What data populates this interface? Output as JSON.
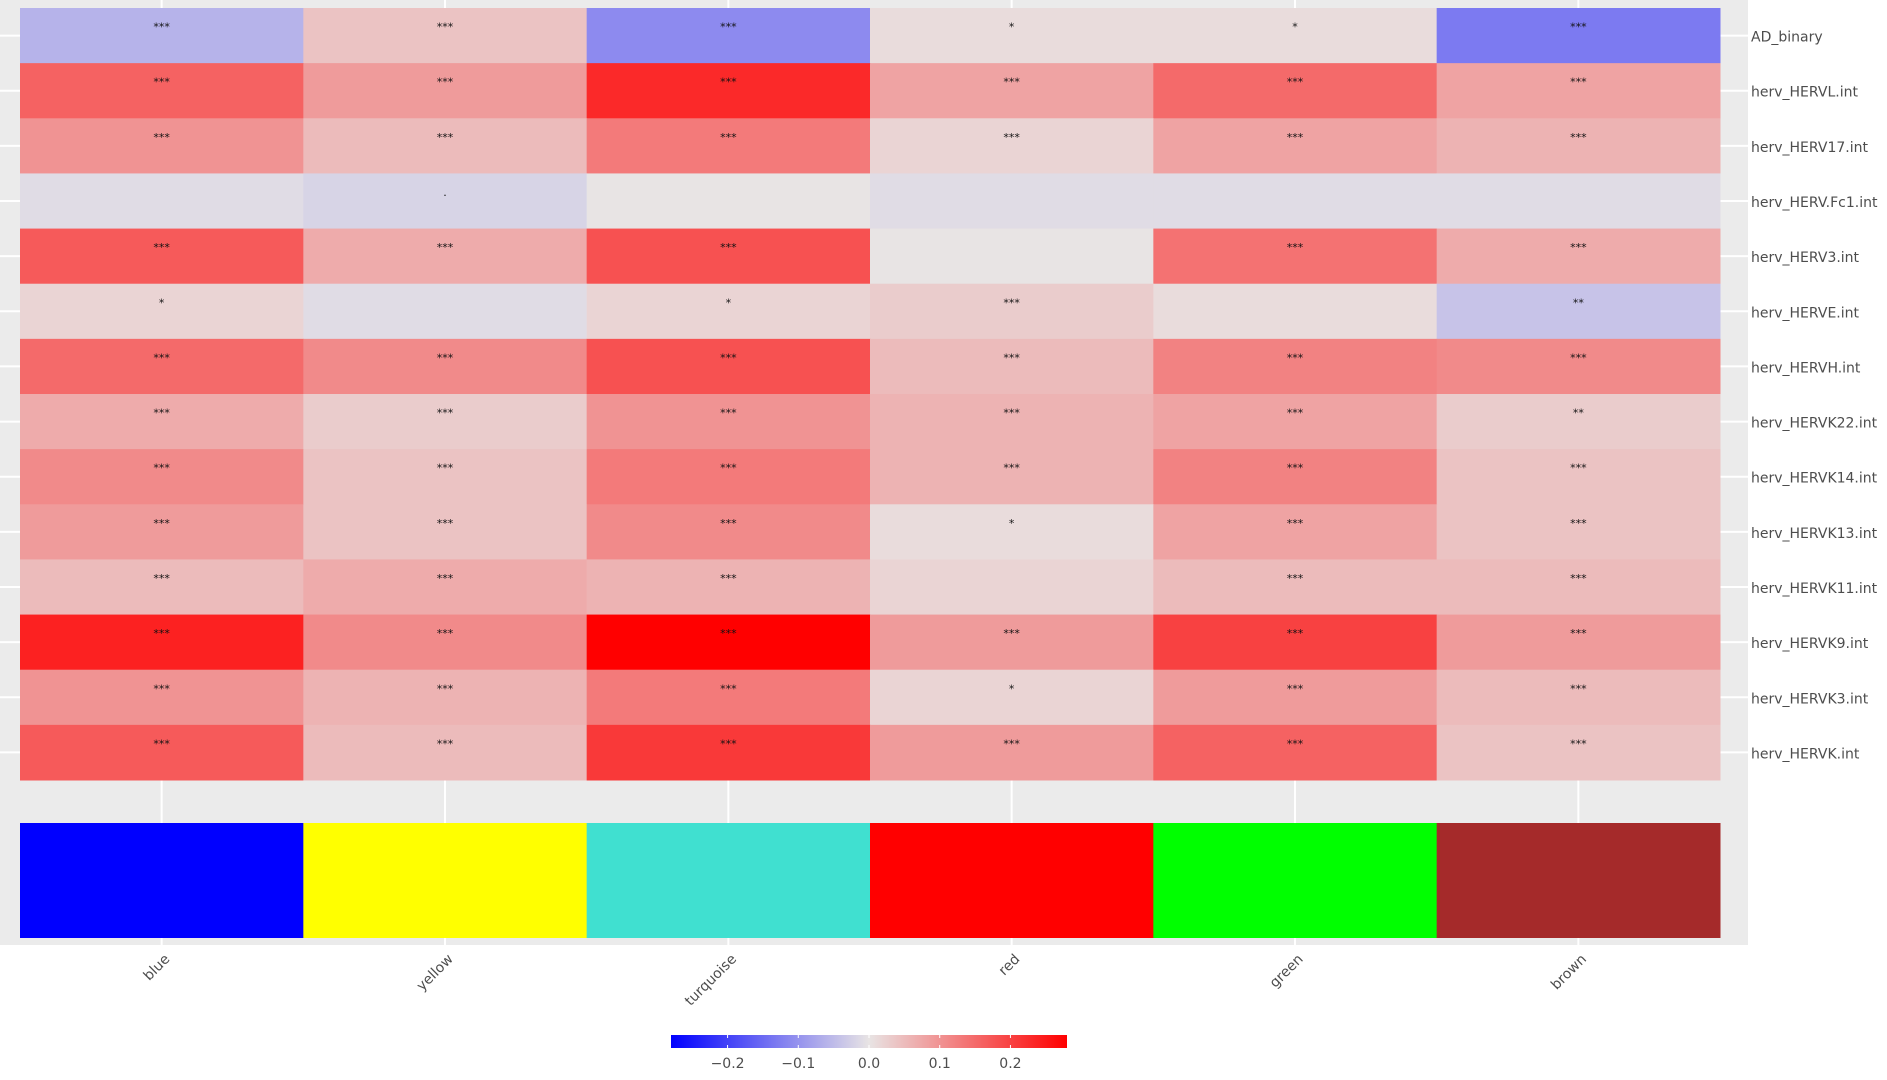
{
  "chart_data": {
    "type": "heatmap",
    "x_categories": [
      "blue",
      "yellow",
      "turquoise",
      "red",
      "green",
      "brown"
    ],
    "y_categories": [
      "AD_binary",
      "herv_HERVL.int",
      "herv_HERV17.int",
      "herv_HERV.Fc1.int",
      "herv_HERV3.int",
      "herv_HERVE.int",
      "herv_HERVH.int",
      "herv_HERVK22.int",
      "herv_HERVK14.int",
      "herv_HERVK13.int",
      "herv_HERVK11.int",
      "herv_HERVK9.int",
      "herv_HERVK3.int",
      "herv_HERVK.int"
    ],
    "values": [
      [
        -0.06,
        0.04,
        -0.11,
        0.01,
        0.01,
        -0.13
      ],
      [
        0.16,
        0.09,
        0.23,
        0.08,
        0.15,
        0.08
      ],
      [
        0.1,
        0.05,
        0.13,
        0.02,
        0.08,
        0.06
      ],
      [
        -0.01,
        -0.02,
        0,
        -0.01,
        -0.01,
        -0.01
      ],
      [
        0.17,
        0.07,
        0.18,
        0,
        0.14,
        0.07
      ],
      [
        0.02,
        -0.01,
        0.02,
        0.03,
        0.01,
        -0.04
      ],
      [
        0.15,
        0.11,
        0.18,
        0.05,
        0.12,
        0.11
      ],
      [
        0.07,
        0.03,
        0.1,
        0.06,
        0.08,
        0.03
      ],
      [
        0.11,
        0.04,
        0.13,
        0.06,
        0.12,
        0.04
      ],
      [
        0.09,
        0.04,
        0.11,
        0.01,
        0.08,
        0.04
      ],
      [
        0.05,
        0.07,
        0.06,
        0.02,
        0.05,
        0.05
      ],
      [
        0.24,
        0.11,
        0.28,
        0.09,
        0.2,
        0.09
      ],
      [
        0.1,
        0.06,
        0.13,
        0.02,
        0.09,
        0.05
      ],
      [
        0.17,
        0.05,
        0.21,
        0.09,
        0.16,
        0.04
      ]
    ],
    "annotations": [
      [
        "***",
        "***",
        "***",
        "*",
        "*",
        "***"
      ],
      [
        "***",
        "***",
        "***",
        "***",
        "***",
        "***"
      ],
      [
        "***",
        "***",
        "***",
        "***",
        "***",
        "***"
      ],
      [
        null,
        ".",
        null,
        null,
        null,
        null
      ],
      [
        "***",
        "***",
        "***",
        null,
        "***",
        "***"
      ],
      [
        "*",
        null,
        "*",
        "***",
        null,
        "**"
      ],
      [
        "***",
        "***",
        "***",
        "***",
        "***",
        "***"
      ],
      [
        "***",
        "***",
        "***",
        "***",
        "***",
        "**"
      ],
      [
        "***",
        "***",
        "***",
        "***",
        "***",
        "***"
      ],
      [
        "***",
        "***",
        "***",
        "*",
        "***",
        "***"
      ],
      [
        "***",
        "***",
        "***",
        null,
        "***",
        "***"
      ],
      [
        "***",
        "***",
        "***",
        "***",
        "***",
        "***"
      ],
      [
        "***",
        "***",
        "***",
        "*",
        "***",
        "***"
      ],
      [
        "***",
        "***",
        "***",
        "***",
        "***",
        "***"
      ]
    ],
    "strip_colors": [
      "#0000ff",
      "#ffff00",
      "#40e0d0",
      "#ff0000",
      "#00ff00",
      "#a52a2a"
    ],
    "colorscale": {
      "low": "#0000ff",
      "mid": "#e8e4e4",
      "high": "#ff0000"
    },
    "clim": [
      -0.28,
      0.28
    ],
    "cticks": [
      {
        "value": -0.2,
        "label": "−0.2"
      },
      {
        "value": -0.1,
        "label": "−0.1"
      },
      {
        "value": 0,
        "label": "0.0"
      },
      0.1,
      0.2
    ]
  }
}
